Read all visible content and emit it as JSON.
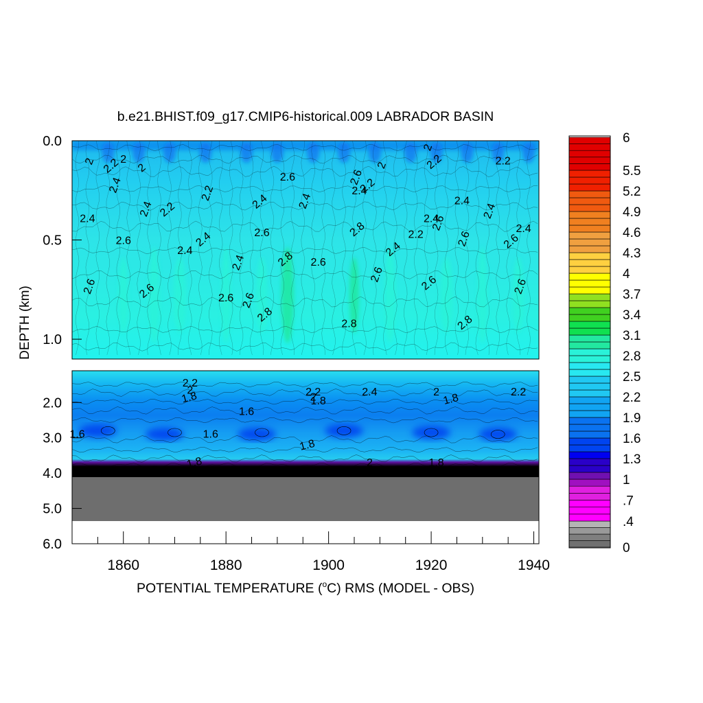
{
  "chart_data": {
    "type": "heatmap",
    "title": "b.e21.BHIST.f09_g17.CMIP6-historical.009 LABRADOR BASIN",
    "xlabel": "POTENTIAL TEMPERATURE (°C) RMS (MODEL - OBS)",
    "xlabel_prefix": "POTENTIAL TEMPERATURE (",
    "xlabel_sup": "o",
    "xlabel_suffix": "C) RMS (MODEL - OBS)",
    "ylabel": "DEPTH (km)",
    "xlim": [
      1850,
      1941
    ],
    "x_ticks": [
      1860,
      1880,
      1900,
      1920,
      1940
    ],
    "x_tick_labels": [
      "1860",
      "1880",
      "1900",
      "1920",
      "1940"
    ],
    "upper_panel": {
      "ylim": [
        0.0,
        1.1
      ],
      "y_ticks": [
        0.0,
        0.5,
        1.0
      ],
      "y_tick_labels": [
        "0.0",
        "0.5",
        "1.0"
      ]
    },
    "lower_panel": {
      "ylim": [
        1.1,
        6.0
      ],
      "y_ticks": [
        2.0,
        3.0,
        4.0,
        5.0,
        6.0
      ],
      "y_tick_labels": [
        "2.0",
        "3.0",
        "4.0",
        "5.0",
        "6.0"
      ],
      "missing_below_depth": 4.1,
      "data_bottom_depth": 5.35
    },
    "colorbar": {
      "min": 0,
      "max": 6,
      "tick_values": [
        6,
        5.5,
        5.2,
        4.9,
        4.6,
        4.3,
        4,
        3.7,
        3.4,
        3.1,
        2.8,
        2.5,
        2.2,
        1.9,
        1.6,
        1.3,
        1,
        0.7,
        0.4,
        0
      ],
      "tick_labels": [
        "6",
        "5.5",
        "5.2",
        "4.9",
        "4.6",
        "4.3",
        "4",
        "3.7",
        "3.4",
        "3.1",
        "2.8",
        "2.5",
        "2.2",
        "1.9",
        "1.6",
        "1.3",
        "1",
        ".7",
        ".4",
        "0"
      ]
    },
    "contour_labels": [
      {
        "panel": "upper",
        "year": 1854,
        "depth": 0.11,
        "value": "2"
      },
      {
        "panel": "upper",
        "year": 1858,
        "depth": 0.14,
        "value": "2.2"
      },
      {
        "panel": "upper",
        "year": 1860,
        "depth": 0.11,
        "value": "2"
      },
      {
        "panel": "upper",
        "year": 1859,
        "depth": 0.23,
        "value": "2.4"
      },
      {
        "panel": "upper",
        "year": 1864,
        "depth": 0.15,
        "value": "2"
      },
      {
        "panel": "upper",
        "year": 1853,
        "depth": 0.41,
        "value": "2.4"
      },
      {
        "panel": "upper",
        "year": 1865,
        "depth": 0.35,
        "value": "2.4"
      },
      {
        "panel": "upper",
        "year": 1869,
        "depth": 0.36,
        "value": "2.2"
      },
      {
        "panel": "upper",
        "year": 1860,
        "depth": 0.52,
        "value": "2.6"
      },
      {
        "panel": "upper",
        "year": 1854,
        "depth": 0.74,
        "value": "2.6"
      },
      {
        "panel": "upper",
        "year": 1865,
        "depth": 0.77,
        "value": "2.6"
      },
      {
        "panel": "upper",
        "year": 1872,
        "depth": 0.57,
        "value": "2.4"
      },
      {
        "panel": "upper",
        "year": 1877,
        "depth": 0.27,
        "value": "2.2"
      },
      {
        "panel": "upper",
        "year": 1876,
        "depth": 0.51,
        "value": "2.4"
      },
      {
        "panel": "upper",
        "year": 1880,
        "depth": 0.81,
        "value": "2.6"
      },
      {
        "panel": "upper",
        "year": 1885,
        "depth": 0.81,
        "value": "2.6"
      },
      {
        "panel": "upper",
        "year": 1887,
        "depth": 0.32,
        "value": "2.4"
      },
      {
        "panel": "upper",
        "year": 1887,
        "depth": 0.48,
        "value": "2.6"
      },
      {
        "panel": "upper",
        "year": 1883,
        "depth": 0.62,
        "value": "2.4"
      },
      {
        "panel": "upper",
        "year": 1888,
        "depth": 0.89,
        "value": "2.8"
      },
      {
        "panel": "upper",
        "year": 1892,
        "depth": 0.2,
        "value": "2.6"
      },
      {
        "panel": "upper",
        "year": 1896,
        "depth": 0.31,
        "value": "2.4"
      },
      {
        "panel": "upper",
        "year": 1892,
        "depth": 0.61,
        "value": "2.8"
      },
      {
        "panel": "upper",
        "year": 1898,
        "depth": 0.63,
        "value": "2.6"
      },
      {
        "panel": "upper",
        "year": 1906,
        "depth": 0.19,
        "value": "2.6"
      },
      {
        "panel": "upper",
        "year": 1908,
        "depth": 0.24,
        "value": "2.2"
      },
      {
        "panel": "upper",
        "year": 1906,
        "depth": 0.27,
        "value": "2.4"
      },
      {
        "panel": "upper",
        "year": 1911,
        "depth": 0.13,
        "value": "2"
      },
      {
        "panel": "upper",
        "year": 1906,
        "depth": 0.46,
        "value": "2.8"
      },
      {
        "panel": "upper",
        "year": 1904,
        "depth": 0.94,
        "value": "2.8"
      },
      {
        "panel": "upper",
        "year": 1910,
        "depth": 0.68,
        "value": "2.6"
      },
      {
        "panel": "upper",
        "year": 1913,
        "depth": 0.56,
        "value": "2.4"
      },
      {
        "panel": "upper",
        "year": 1917,
        "depth": 0.49,
        "value": "2.2"
      },
      {
        "panel": "upper",
        "year": 1920,
        "depth": 0.04,
        "value": "2"
      },
      {
        "panel": "upper",
        "year": 1921,
        "depth": 0.12,
        "value": "2.2"
      },
      {
        "panel": "upper",
        "year": 1920,
        "depth": 0.41,
        "value": "2.4"
      },
      {
        "panel": "upper",
        "year": 1922,
        "depth": 0.42,
        "value": "2.6"
      },
      {
        "panel": "upper",
        "year": 1920,
        "depth": 0.73,
        "value": "2.6"
      },
      {
        "panel": "upper",
        "year": 1926,
        "depth": 0.32,
        "value": "2.4"
      },
      {
        "panel": "upper",
        "year": 1927,
        "depth": 0.5,
        "value": "2.6"
      },
      {
        "panel": "upper",
        "year": 1927,
        "depth": 0.93,
        "value": "2.8"
      },
      {
        "panel": "upper",
        "year": 1934,
        "depth": 0.12,
        "value": "2.2"
      },
      {
        "panel": "upper",
        "year": 1932,
        "depth": 0.36,
        "value": "2.4"
      },
      {
        "panel": "upper",
        "year": 1936,
        "depth": 0.52,
        "value": "2.6"
      },
      {
        "panel": "upper",
        "year": 1938,
        "depth": 0.46,
        "value": "2.4"
      },
      {
        "panel": "upper",
        "year": 1938,
        "depth": 0.74,
        "value": "2.6"
      },
      {
        "panel": "lower",
        "year": 1873,
        "depth": 1.55,
        "value": "2.2"
      },
      {
        "panel": "lower",
        "year": 1873,
        "depth": 1.75,
        "value": "2"
      },
      {
        "panel": "lower",
        "year": 1873,
        "depth": 1.95,
        "value": "1.8"
      },
      {
        "panel": "lower",
        "year": 1884,
        "depth": 2.35,
        "value": "1.6"
      },
      {
        "panel": "lower",
        "year": 1851,
        "depth": 3.0,
        "value": "1.6"
      },
      {
        "panel": "lower",
        "year": 1877,
        "depth": 3.0,
        "value": "1.6"
      },
      {
        "panel": "lower",
        "year": 1874,
        "depth": 3.8,
        "value": "1.8"
      },
      {
        "panel": "lower",
        "year": 1897,
        "depth": 1.8,
        "value": "2.2"
      },
      {
        "panel": "lower",
        "year": 1897,
        "depth": 1.95,
        "value": "2"
      },
      {
        "panel": "lower",
        "year": 1898,
        "depth": 2.05,
        "value": "1.8"
      },
      {
        "panel": "lower",
        "year": 1896,
        "depth": 3.3,
        "value": "1.8"
      },
      {
        "panel": "lower",
        "year": 1908,
        "depth": 1.8,
        "value": "2.4"
      },
      {
        "panel": "lower",
        "year": 1908,
        "depth": 3.8,
        "value": "2"
      },
      {
        "panel": "lower",
        "year": 1921,
        "depth": 1.8,
        "value": "2"
      },
      {
        "panel": "lower",
        "year": 1924,
        "depth": 2.0,
        "value": "1.8"
      },
      {
        "panel": "lower",
        "year": 1921,
        "depth": 3.8,
        "value": "1.8"
      },
      {
        "panel": "lower",
        "year": 1937,
        "depth": 1.8,
        "value": "2.2"
      }
    ]
  }
}
